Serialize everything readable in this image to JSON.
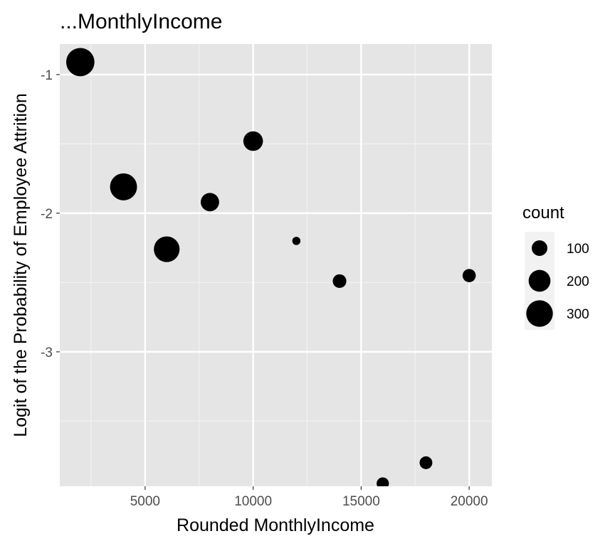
{
  "chart_data": {
    "type": "scatter",
    "title": "...MonthlyIncome",
    "xlabel": "Rounded MonthlyIncome",
    "ylabel": "Logit of the Probability of Employee Attrition",
    "xlim": [
      1050,
      21050
    ],
    "ylim": [
      -3.97,
      -0.78
    ],
    "x_ticks": [
      5000,
      10000,
      15000,
      20000
    ],
    "x_tick_labels": [
      "5000",
      "10000",
      "15000",
      "20000"
    ],
    "y_ticks": [
      -1,
      -2,
      -3
    ],
    "y_tick_labels": [
      "-1",
      "-2",
      "-3"
    ],
    "grid": true,
    "legend_position": "right",
    "size_legend": {
      "title": "count",
      "entries": [
        {
          "label": "100",
          "value": 100
        },
        {
          "label": "200",
          "value": 200
        },
        {
          "label": "300",
          "value": 300
        }
      ]
    },
    "points": [
      {
        "x": 2000,
        "y": -0.91,
        "count": 340
      },
      {
        "x": 4000,
        "y": -1.81,
        "count": 310
      },
      {
        "x": 6000,
        "y": -2.26,
        "count": 280
      },
      {
        "x": 8000,
        "y": -1.92,
        "count": 140
      },
      {
        "x": 10000,
        "y": -1.48,
        "count": 160
      },
      {
        "x": 12000,
        "y": -2.2,
        "count": 25
      },
      {
        "x": 14000,
        "y": -2.49,
        "count": 75
      },
      {
        "x": 16000,
        "y": -3.95,
        "count": 60
      },
      {
        "x": 18000,
        "y": -3.8,
        "count": 65
      },
      {
        "x": 20000,
        "y": -2.45,
        "count": 70
      }
    ],
    "colors": {
      "panel": "#e5e5e5",
      "grid_major": "#ffffff",
      "grid_minor": "#f2f2f2",
      "point": "#000000",
      "legend_key_bg": "#f2f2f2"
    }
  }
}
